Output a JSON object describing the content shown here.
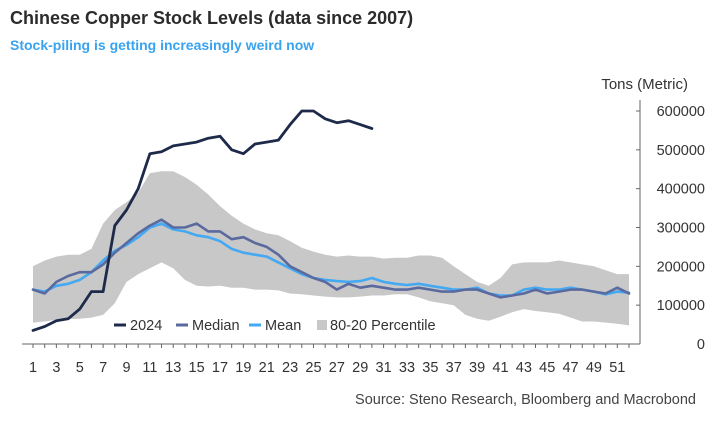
{
  "header": {
    "title": "Chinese Copper Stock Levels (data since 2007)",
    "subtitle": "Stock-piling is getting increasingly weird now"
  },
  "footer": {
    "source": "Source: Steno Research, Bloomberg and Macrobond"
  },
  "colors": {
    "y2024": "#1e2a4a",
    "median": "#5a6a9e",
    "mean": "#44a8f2",
    "band": "#c8c8c8",
    "subtitle": "#3aa3ef"
  },
  "chart_data": {
    "type": "line",
    "ylabel": "Tons (Metric)",
    "xlabel": "",
    "xlim": [
      1,
      52
    ],
    "ylim": [
      0,
      600000
    ],
    "y_ticks": [
      0,
      100000,
      200000,
      300000,
      400000,
      500000,
      600000
    ],
    "y_tick_labels": [
      "0",
      "100000",
      "200000",
      "300000",
      "400000",
      "500000",
      "600000"
    ],
    "x_ticks": [
      1,
      3,
      5,
      7,
      9,
      11,
      13,
      15,
      17,
      19,
      21,
      23,
      25,
      27,
      29,
      31,
      33,
      35,
      37,
      39,
      41,
      43,
      45,
      47,
      49,
      51
    ],
    "x_tick_labels": [
      "1",
      "3",
      "5",
      "7",
      "9",
      "11",
      "13",
      "15",
      "17",
      "19",
      "21",
      "23",
      "25",
      "27",
      "29",
      "31",
      "33",
      "35",
      "37",
      "39",
      "41",
      "43",
      "45",
      "47",
      "49",
      "51"
    ],
    "y_axis_side": "right",
    "legend_position": "bottom-left",
    "grid": false,
    "series": [
      {
        "name": "80-20 Percentile",
        "kind": "band",
        "x": [
          1,
          2,
          3,
          4,
          5,
          6,
          7,
          8,
          9,
          10,
          11,
          12,
          13,
          14,
          15,
          16,
          17,
          18,
          19,
          20,
          21,
          22,
          23,
          24,
          25,
          26,
          27,
          28,
          29,
          30,
          31,
          32,
          33,
          34,
          35,
          36,
          37,
          38,
          39,
          40,
          41,
          42,
          43,
          44,
          45,
          46,
          47,
          48,
          49,
          50,
          51,
          52
        ],
        "upper": [
          200000,
          215000,
          225000,
          230000,
          230000,
          245000,
          310000,
          345000,
          365000,
          390000,
          440000,
          445000,
          445000,
          430000,
          410000,
          385000,
          355000,
          330000,
          310000,
          295000,
          285000,
          280000,
          265000,
          248000,
          238000,
          230000,
          225000,
          228000,
          225000,
          225000,
          220000,
          222000,
          222000,
          228000,
          228000,
          222000,
          200000,
          180000,
          160000,
          150000,
          170000,
          205000,
          210000,
          210000,
          210000,
          215000,
          210000,
          205000,
          200000,
          190000,
          180000,
          180000
        ],
        "lower": [
          55000,
          58000,
          62000,
          64000,
          65000,
          68000,
          75000,
          105000,
          160000,
          180000,
          195000,
          210000,
          195000,
          165000,
          150000,
          148000,
          150000,
          145000,
          145000,
          140000,
          140000,
          138000,
          130000,
          128000,
          125000,
          122000,
          120000,
          120000,
          122000,
          125000,
          125000,
          128000,
          128000,
          120000,
          110000,
          105000,
          100000,
          75000,
          65000,
          60000,
          70000,
          82000,
          90000,
          85000,
          82000,
          78000,
          68000,
          58000,
          58000,
          55000,
          52000,
          48000
        ]
      },
      {
        "name": "Mean",
        "kind": "line",
        "x": [
          1,
          2,
          3,
          4,
          5,
          6,
          7,
          8,
          9,
          10,
          11,
          12,
          13,
          14,
          15,
          16,
          17,
          18,
          19,
          20,
          21,
          22,
          23,
          24,
          25,
          26,
          27,
          28,
          29,
          30,
          31,
          32,
          33,
          34,
          35,
          36,
          37,
          38,
          39,
          40,
          41,
          42,
          43,
          44,
          45,
          46,
          47,
          48,
          49,
          50,
          51,
          52
        ],
        "values": [
          140000,
          135000,
          150000,
          155000,
          165000,
          185000,
          215000,
          240000,
          255000,
          275000,
          300000,
          310000,
          295000,
          290000,
          280000,
          275000,
          265000,
          245000,
          235000,
          230000,
          225000,
          210000,
          195000,
          180000,
          170000,
          165000,
          162000,
          160000,
          162000,
          170000,
          160000,
          155000,
          152000,
          155000,
          150000,
          145000,
          140000,
          140000,
          145000,
          130000,
          125000,
          125000,
          140000,
          145000,
          140000,
          140000,
          145000,
          140000,
          135000,
          128000,
          135000,
          132000
        ]
      },
      {
        "name": "Median",
        "kind": "line",
        "x": [
          1,
          2,
          3,
          4,
          5,
          6,
          7,
          8,
          9,
          10,
          11,
          12,
          13,
          14,
          15,
          16,
          17,
          18,
          19,
          20,
          21,
          22,
          23,
          24,
          25,
          26,
          27,
          28,
          29,
          30,
          31,
          32,
          33,
          34,
          35,
          36,
          37,
          38,
          39,
          40,
          41,
          42,
          43,
          44,
          45,
          46,
          47,
          48,
          49,
          50,
          51,
          52
        ],
        "values": [
          140000,
          130000,
          160000,
          175000,
          185000,
          185000,
          205000,
          235000,
          260000,
          285000,
          305000,
          320000,
          300000,
          300000,
          310000,
          290000,
          290000,
          270000,
          275000,
          260000,
          250000,
          230000,
          200000,
          185000,
          170000,
          160000,
          140000,
          155000,
          145000,
          150000,
          145000,
          140000,
          140000,
          145000,
          140000,
          135000,
          135000,
          140000,
          140000,
          130000,
          120000,
          125000,
          130000,
          140000,
          130000,
          135000,
          140000,
          140000,
          135000,
          130000,
          145000,
          130000
        ]
      },
      {
        "name": "2024",
        "kind": "line",
        "x": [
          1,
          2,
          3,
          4,
          5,
          6,
          7,
          8,
          9,
          10,
          11,
          12,
          13,
          14,
          15,
          16,
          17,
          18,
          19,
          20,
          21,
          22,
          23,
          24,
          25,
          26,
          27,
          28,
          29,
          30
        ],
        "values": [
          35000,
          45000,
          60000,
          65000,
          90000,
          135000,
          135000,
          305000,
          345000,
          400000,
          490000,
          495000,
          510000,
          515000,
          520000,
          530000,
          535000,
          500000,
          490000,
          515000,
          520000,
          525000,
          565000,
          600000,
          600000,
          580000,
          570000,
          575000,
          565000,
          555000
        ]
      }
    ]
  }
}
